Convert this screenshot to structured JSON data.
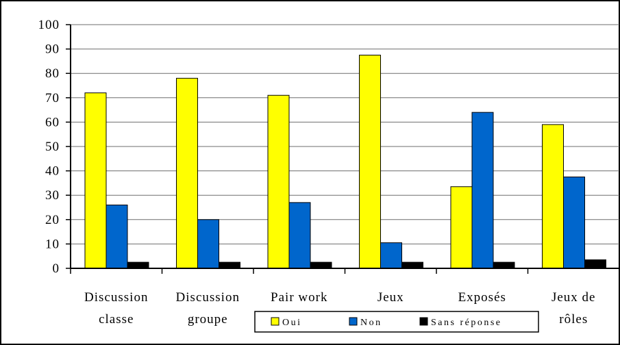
{
  "chart_data": {
    "type": "bar",
    "categories": [
      [
        "Discussion",
        "classe"
      ],
      [
        "Discussion",
        "groupe"
      ],
      [
        "Pair work"
      ],
      [
        "Jeux"
      ],
      [
        "Exposés"
      ],
      [
        "Jeux de",
        "rôles"
      ]
    ],
    "series": [
      {
        "name": "Oui",
        "color": "#FFFF00",
        "values": [
          72,
          78,
          71,
          87.5,
          33.5,
          59
        ]
      },
      {
        "name": "Non",
        "color": "#0066CC",
        "values": [
          26,
          20,
          27,
          10.5,
          64,
          37.5
        ]
      },
      {
        "name": "Sans réponse",
        "color": "#000000",
        "values": [
          2.5,
          2.5,
          2.5,
          2.5,
          2.5,
          3.5
        ]
      }
    ],
    "y_ticks": [
      "0",
      "10",
      "20",
      "30",
      "40",
      "50",
      "60",
      "70",
      "80",
      "90",
      "100"
    ],
    "ylim": [
      0,
      100
    ],
    "grid": true,
    "legend_position": "bottom"
  }
}
